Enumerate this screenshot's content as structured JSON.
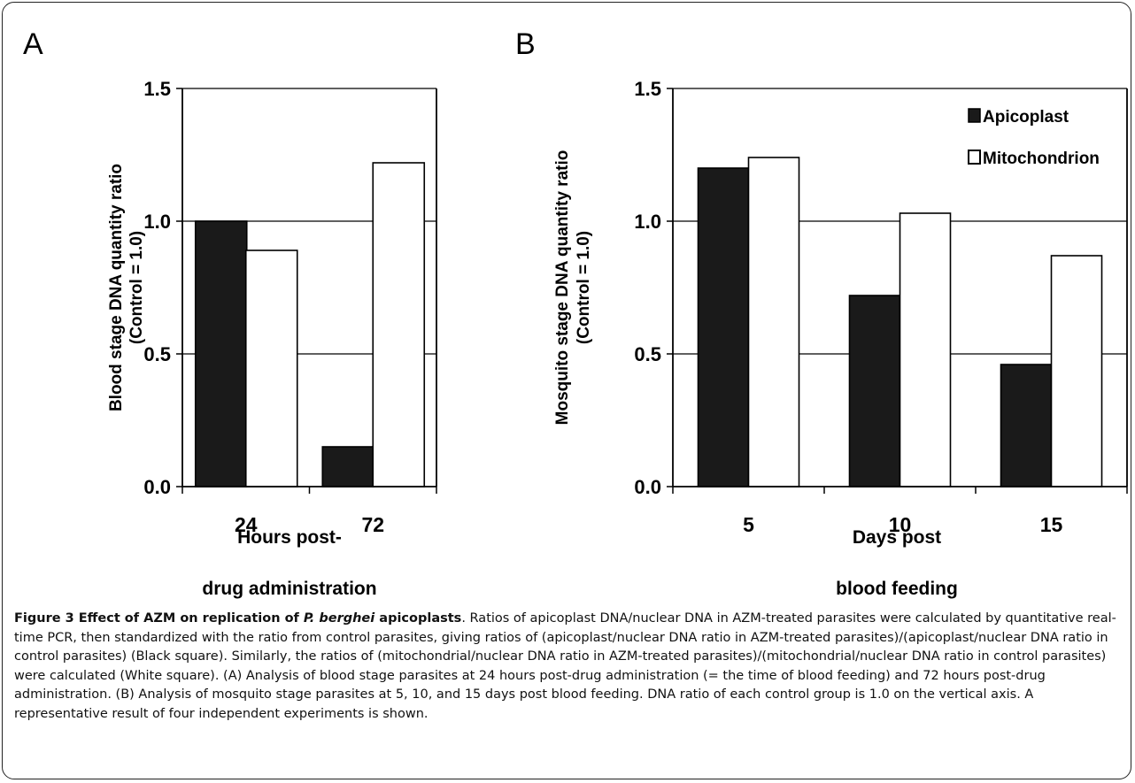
{
  "chart_data": [
    {
      "type": "bar",
      "panel_label": "A",
      "categories": [
        "24",
        "72"
      ],
      "series": [
        {
          "name": "Apicoplast",
          "values": [
            1.0,
            0.15
          ]
        },
        {
          "name": "Mitochondrion",
          "values": [
            0.89,
            1.22
          ]
        }
      ],
      "ylabel_line1": "Blood stage DNA quantity ratio",
      "ylabel_line2": "(Control = 1.0)",
      "xlabel_line1": "Hours post-",
      "xlabel_line2": "drug administration",
      "ylim": [
        0.0,
        1.5
      ],
      "yticks": [
        "0.0",
        "0.5",
        "1.0",
        "1.5"
      ],
      "grid": true,
      "legend": "none"
    },
    {
      "type": "bar",
      "panel_label": "B",
      "categories": [
        "5",
        "10",
        "15"
      ],
      "series": [
        {
          "name": "Apicoplast",
          "values": [
            1.2,
            0.72,
            0.46
          ]
        },
        {
          "name": "Mitochondrion",
          "values": [
            1.24,
            1.03,
            0.87
          ]
        }
      ],
      "ylabel_line1": "Mosquito stage DNA quantity ratio",
      "ylabel_line2": "(Control = 1.0)",
      "xlabel_line1": "Days post",
      "xlabel_line2": "blood feeding",
      "ylim": [
        0.0,
        1.5
      ],
      "yticks": [
        "0.0",
        "0.5",
        "1.0",
        "1.5"
      ],
      "grid": true,
      "legend": "top-right",
      "legend_labels": [
        "Apicoplast",
        "Mitochondrion"
      ]
    }
  ],
  "colors": {
    "apicoplast": "#1a1a1a",
    "mitochondrion": "#ffffff",
    "axis": "#000000"
  },
  "caption": {
    "title": "Figure 3 Effect of AZM on replication of P. berghei apicoplasts",
    "title_prefix": "Figure 3 Effect of AZM on replication of ",
    "title_italic": "P. berghei",
    "title_suffix": " apicoplasts",
    "body": ". Ratios of apicoplast DNA/nuclear DNA in AZM-treated parasites were calculated by quantitative real-time PCR, then standardized with the ratio from control parasites, giving ratios of (apicoplast/nuclear DNA ratio in AZM-treated parasites)/(apicoplast/nuclear DNA ratio in control parasites) (Black square). Similarly, the ratios of (mitochondrial/nuclear DNA ratio in AZM-treated parasites)/(mitochondrial/nuclear DNA ratio in control parasites) were calculated (White square). (A) Analysis of blood stage parasites at 24 hours post-drug administration (= the time of blood feeding) and 72 hours post-drug administration. (B) Analysis of mosquito stage parasites at 5, 10, and 15 days post blood feeding. DNA ratio of each control group is 1.0 on the vertical axis. A representative result of four independent experiments is shown."
  }
}
